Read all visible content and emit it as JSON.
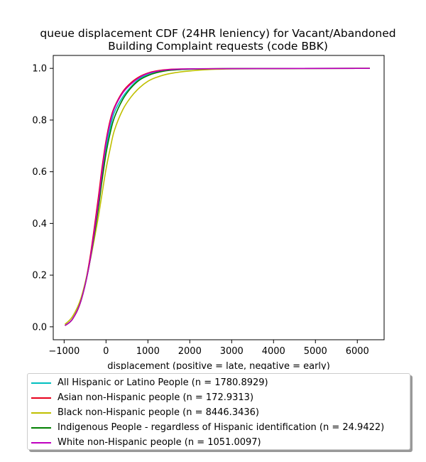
{
  "chart_data": {
    "type": "line",
    "title": "queue displacement CDF (24HR leniency) for Vacant/Abandoned\nBuilding Complaint  requests (code BBK)",
    "xlabel": "displacement (positive = late, negative = early)",
    "ylabel": "",
    "xlim": [
      -1260,
      6640
    ],
    "ylim": [
      -0.05,
      1.05
    ],
    "xticks": [
      -1000,
      0,
      1000,
      2000,
      3000,
      4000,
      5000,
      6000
    ],
    "yticks": [
      0.0,
      0.2,
      0.4,
      0.6,
      0.8,
      1.0
    ],
    "xtick_labels": [
      "−1000",
      "0",
      "1000",
      "2000",
      "3000",
      "4000",
      "5000",
      "6000"
    ],
    "ytick_labels": [
      "0.0",
      "0.2",
      "0.4",
      "0.6",
      "0.8",
      "1.0"
    ],
    "grid": false,
    "legend_position": "below",
    "series": [
      {
        "name": "All Hispanic or Latino People (n = 1780.8929)",
        "color": "#00bfbf",
        "x": [
          -980,
          -800,
          -600,
          -400,
          -200,
          -100,
          0,
          100,
          200,
          400,
          600,
          800,
          1000,
          1200,
          1500,
          2000,
          3000,
          6300
        ],
        "y": [
          0.005,
          0.03,
          0.1,
          0.24,
          0.45,
          0.57,
          0.69,
          0.77,
          0.83,
          0.89,
          0.93,
          0.96,
          0.975,
          0.985,
          0.993,
          0.997,
          0.999,
          1.0
        ]
      },
      {
        "name": "Asian non-Hispanic people (n = 172.9313)",
        "color": "#e8001c",
        "x": [
          -980,
          -800,
          -600,
          -400,
          -200,
          -100,
          0,
          100,
          200,
          400,
          600,
          800,
          1000,
          1200,
          1500,
          2000,
          3000,
          6300
        ],
        "y": [
          0.005,
          0.03,
          0.1,
          0.25,
          0.48,
          0.61,
          0.72,
          0.8,
          0.85,
          0.91,
          0.945,
          0.968,
          0.982,
          0.99,
          0.996,
          0.998,
          0.999,
          1.0
        ]
      },
      {
        "name": "Black non-Hispanic people (n = 8446.3436)",
        "color": "#bfbf00",
        "x": [
          -980,
          -800,
          -600,
          -400,
          -200,
          -100,
          0,
          100,
          200,
          400,
          600,
          800,
          1000,
          1200,
          1500,
          2000,
          3000,
          6300
        ],
        "y": [
          0.01,
          0.04,
          0.11,
          0.24,
          0.41,
          0.51,
          0.61,
          0.69,
          0.76,
          0.84,
          0.89,
          0.925,
          0.95,
          0.965,
          0.979,
          0.99,
          0.998,
          1.0
        ]
      },
      {
        "name": "Indigenous People - regardless of Hispanic identification (n = 24.9422)",
        "color": "#008000",
        "x": [
          -980,
          -800,
          -600,
          -400,
          -200,
          -100,
          0,
          100,
          200,
          400,
          600,
          800,
          1000,
          1200,
          1500,
          2000,
          3000,
          6300
        ],
        "y": [
          0.005,
          0.03,
          0.1,
          0.24,
          0.44,
          0.56,
          0.67,
          0.75,
          0.81,
          0.88,
          0.925,
          0.955,
          0.972,
          0.983,
          0.992,
          0.997,
          0.999,
          1.0
        ]
      },
      {
        "name": "White non-Hispanic people (n = 1051.0097)",
        "color": "#bf00bf",
        "x": [
          -980,
          -800,
          -600,
          -400,
          -200,
          -100,
          0,
          100,
          200,
          400,
          600,
          800,
          1000,
          1200,
          1500,
          2000,
          3000,
          6300
        ],
        "y": [
          0.005,
          0.03,
          0.1,
          0.24,
          0.46,
          0.59,
          0.71,
          0.79,
          0.845,
          0.905,
          0.94,
          0.965,
          0.98,
          0.988,
          0.995,
          0.998,
          0.999,
          1.0
        ]
      }
    ]
  }
}
